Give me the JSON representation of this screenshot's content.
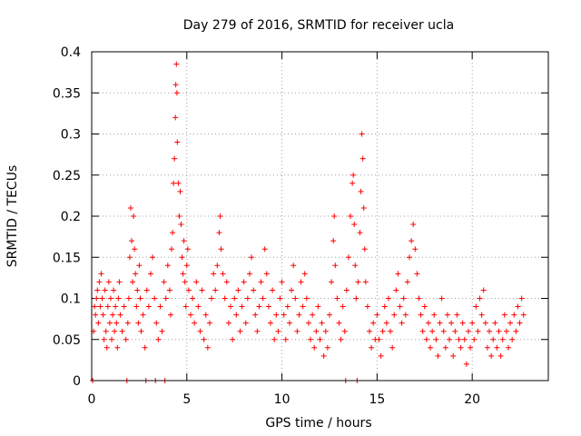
{
  "chart_data": {
    "type": "scatter",
    "title": "Day 279 of 2016, SRMTID for receiver ucla",
    "xlabel": "GPS time / hours",
    "ylabel": "SRMTID / TECUs",
    "xlim": [
      0,
      24
    ],
    "ylim": [
      0,
      0.4
    ],
    "grid": true,
    "marker": "+",
    "marker_color": "#ff0000",
    "xticks": [
      0,
      5,
      10,
      15,
      20
    ],
    "xtick_labels": [
      "0",
      "5",
      "10",
      "15",
      "20"
    ],
    "yticks": [
      0,
      0.05,
      0.1,
      0.15,
      0.2,
      0.25,
      0.3,
      0.35,
      0.4
    ],
    "ytick_labels": [
      "0",
      "0.05",
      "0.1",
      "0.15",
      "0.2",
      "0.25",
      "0.3",
      "0.35",
      "0.4"
    ],
    "series": [
      {
        "name": "SRMTID",
        "points": [
          [
            0.05,
            0.0
          ],
          [
            0.1,
            0.06
          ],
          [
            0.15,
            0.09
          ],
          [
            0.2,
            0.08
          ],
          [
            0.25,
            0.1
          ],
          [
            0.3,
            0.11
          ],
          [
            0.35,
            0.07
          ],
          [
            0.4,
            0.12
          ],
          [
            0.45,
            0.09
          ],
          [
            0.5,
            0.13
          ],
          [
            0.55,
            0.1
          ],
          [
            0.6,
            0.08
          ],
          [
            0.65,
            0.05
          ],
          [
            0.7,
            0.11
          ],
          [
            0.75,
            0.06
          ],
          [
            0.8,
            0.04
          ],
          [
            0.85,
            0.09
          ],
          [
            0.9,
            0.12
          ],
          [
            0.95,
            0.07
          ],
          [
            1.0,
            0.1
          ],
          [
            1.05,
            0.05
          ],
          [
            1.1,
            0.08
          ],
          [
            1.15,
            0.11
          ],
          [
            1.2,
            0.06
          ],
          [
            1.25,
            0.09
          ],
          [
            1.3,
            0.07
          ],
          [
            1.35,
            0.04
          ],
          [
            1.4,
            0.1
          ],
          [
            1.45,
            0.12
          ],
          [
            1.5,
            0.08
          ],
          [
            1.6,
            0.06
          ],
          [
            1.7,
            0.09
          ],
          [
            1.8,
            0.05
          ],
          [
            1.85,
            0.0
          ],
          [
            1.9,
            0.07
          ],
          [
            1.95,
            0.1
          ],
          [
            2.0,
            0.15
          ],
          [
            2.05,
            0.21
          ],
          [
            2.1,
            0.17
          ],
          [
            2.15,
            0.12
          ],
          [
            2.2,
            0.2
          ],
          [
            2.25,
            0.16
          ],
          [
            2.3,
            0.13
          ],
          [
            2.35,
            0.09
          ],
          [
            2.4,
            0.11
          ],
          [
            2.45,
            0.07
          ],
          [
            2.5,
            0.14
          ],
          [
            2.55,
            0.1
          ],
          [
            2.6,
            0.06
          ],
          [
            2.7,
            0.08
          ],
          [
            2.8,
            0.04
          ],
          [
            2.85,
            0.0
          ],
          [
            2.9,
            0.11
          ],
          [
            3.0,
            0.09
          ],
          [
            3.1,
            0.13
          ],
          [
            3.2,
            0.15
          ],
          [
            3.3,
            0.1
          ],
          [
            3.35,
            0.0
          ],
          [
            3.4,
            0.07
          ],
          [
            3.5,
            0.05
          ],
          [
            3.6,
            0.09
          ],
          [
            3.7,
            0.06
          ],
          [
            3.8,
            0.12
          ],
          [
            3.85,
            0.0
          ],
          [
            3.9,
            0.1
          ],
          [
            4.0,
            0.14
          ],
          [
            4.1,
            0.11
          ],
          [
            4.15,
            0.08
          ],
          [
            4.2,
            0.16
          ],
          [
            4.25,
            0.18
          ],
          [
            4.3,
            0.24
          ],
          [
            4.35,
            0.27
          ],
          [
            4.4,
            0.32
          ],
          [
            4.42,
            0.36
          ],
          [
            4.45,
            0.385
          ],
          [
            4.48,
            0.35
          ],
          [
            4.5,
            0.29
          ],
          [
            4.55,
            0.24
          ],
          [
            4.6,
            0.2
          ],
          [
            4.65,
            0.23
          ],
          [
            4.7,
            0.19
          ],
          [
            4.75,
            0.15
          ],
          [
            4.8,
            0.13
          ],
          [
            4.85,
            0.17
          ],
          [
            4.9,
            0.12
          ],
          [
            4.95,
            0.09
          ],
          [
            5.0,
            0.14
          ],
          [
            5.05,
            0.16
          ],
          [
            5.1,
            0.11
          ],
          [
            5.2,
            0.08
          ],
          [
            5.3,
            0.1
          ],
          [
            5.4,
            0.07
          ],
          [
            5.5,
            0.12
          ],
          [
            5.6,
            0.09
          ],
          [
            5.7,
            0.06
          ],
          [
            5.8,
            0.11
          ],
          [
            5.9,
            0.05
          ],
          [
            6.0,
            0.08
          ],
          [
            6.1,
            0.04
          ],
          [
            6.2,
            0.07
          ],
          [
            6.3,
            0.1
          ],
          [
            6.4,
            0.13
          ],
          [
            6.5,
            0.11
          ],
          [
            6.6,
            0.14
          ],
          [
            6.7,
            0.18
          ],
          [
            6.75,
            0.2
          ],
          [
            6.8,
            0.16
          ],
          [
            6.9,
            0.13
          ],
          [
            7.0,
            0.1
          ],
          [
            7.1,
            0.12
          ],
          [
            7.2,
            0.07
          ],
          [
            7.3,
            0.09
          ],
          [
            7.4,
            0.05
          ],
          [
            7.5,
            0.1
          ],
          [
            7.6,
            0.08
          ],
          [
            7.7,
            0.11
          ],
          [
            7.8,
            0.06
          ],
          [
            7.9,
            0.09
          ],
          [
            8.0,
            0.12
          ],
          [
            8.1,
            0.07
          ],
          [
            8.2,
            0.1
          ],
          [
            8.3,
            0.13
          ],
          [
            8.4,
            0.15
          ],
          [
            8.5,
            0.11
          ],
          [
            8.6,
            0.08
          ],
          [
            8.7,
            0.06
          ],
          [
            8.8,
            0.09
          ],
          [
            8.9,
            0.12
          ],
          [
            9.0,
            0.1
          ],
          [
            9.1,
            0.16
          ],
          [
            9.2,
            0.13
          ],
          [
            9.3,
            0.09
          ],
          [
            9.4,
            0.07
          ],
          [
            9.5,
            0.11
          ],
          [
            9.6,
            0.05
          ],
          [
            9.7,
            0.08
          ],
          [
            9.8,
            0.06
          ],
          [
            9.9,
            0.1
          ],
          [
            10.0,
            0.12
          ],
          [
            10.1,
            0.08
          ],
          [
            10.2,
            0.05
          ],
          [
            10.3,
            0.09
          ],
          [
            10.4,
            0.07
          ],
          [
            10.5,
            0.11
          ],
          [
            10.6,
            0.14
          ],
          [
            10.7,
            0.1
          ],
          [
            10.8,
            0.06
          ],
          [
            10.9,
            0.08
          ],
          [
            11.0,
            0.12
          ],
          [
            11.1,
            0.09
          ],
          [
            11.2,
            0.13
          ],
          [
            11.3,
            0.1
          ],
          [
            11.4,
            0.07
          ],
          [
            11.5,
            0.05
          ],
          [
            11.6,
            0.08
          ],
          [
            11.7,
            0.04
          ],
          [
            11.8,
            0.06
          ],
          [
            11.9,
            0.09
          ],
          [
            12.0,
            0.05
          ],
          [
            12.1,
            0.07
          ],
          [
            12.2,
            0.03
          ],
          [
            12.3,
            0.06
          ],
          [
            12.4,
            0.04
          ],
          [
            12.5,
            0.08
          ],
          [
            12.6,
            0.12
          ],
          [
            12.7,
            0.17
          ],
          [
            12.75,
            0.2
          ],
          [
            12.8,
            0.14
          ],
          [
            12.9,
            0.1
          ],
          [
            13.0,
            0.07
          ],
          [
            13.1,
            0.05
          ],
          [
            13.2,
            0.09
          ],
          [
            13.3,
            0.06
          ],
          [
            13.35,
            0.0
          ],
          [
            13.4,
            0.11
          ],
          [
            13.5,
            0.15
          ],
          [
            13.6,
            0.2
          ],
          [
            13.7,
            0.24
          ],
          [
            13.75,
            0.25
          ],
          [
            13.8,
            0.19
          ],
          [
            13.85,
            0.14
          ],
          [
            13.9,
            0.1
          ],
          [
            13.95,
            0.0
          ],
          [
            14.0,
            0.12
          ],
          [
            14.1,
            0.18
          ],
          [
            14.15,
            0.23
          ],
          [
            14.2,
            0.3
          ],
          [
            14.25,
            0.27
          ],
          [
            14.3,
            0.21
          ],
          [
            14.35,
            0.16
          ],
          [
            14.4,
            0.12
          ],
          [
            14.5,
            0.09
          ],
          [
            14.6,
            0.06
          ],
          [
            14.7,
            0.04
          ],
          [
            14.8,
            0.07
          ],
          [
            14.9,
            0.05
          ],
          [
            15.0,
            0.08
          ],
          [
            15.1,
            0.05
          ],
          [
            15.2,
            0.03
          ],
          [
            15.3,
            0.06
          ],
          [
            15.4,
            0.09
          ],
          [
            15.5,
            0.07
          ],
          [
            15.6,
            0.1
          ],
          [
            15.7,
            0.06
          ],
          [
            15.8,
            0.04
          ],
          [
            15.9,
            0.08
          ],
          [
            16.0,
            0.11
          ],
          [
            16.1,
            0.13
          ],
          [
            16.2,
            0.09
          ],
          [
            16.3,
            0.07
          ],
          [
            16.4,
            0.1
          ],
          [
            16.5,
            0.08
          ],
          [
            16.6,
            0.12
          ],
          [
            16.7,
            0.15
          ],
          [
            16.8,
            0.17
          ],
          [
            16.9,
            0.19
          ],
          [
            17.0,
            0.16
          ],
          [
            17.1,
            0.13
          ],
          [
            17.2,
            0.1
          ],
          [
            17.3,
            0.08
          ],
          [
            17.4,
            0.06
          ],
          [
            17.5,
            0.09
          ],
          [
            17.6,
            0.05
          ],
          [
            17.7,
            0.07
          ],
          [
            17.8,
            0.04
          ],
          [
            17.9,
            0.06
          ],
          [
            18.0,
            0.08
          ],
          [
            18.1,
            0.05
          ],
          [
            18.2,
            0.03
          ],
          [
            18.3,
            0.07
          ],
          [
            18.4,
            0.1
          ],
          [
            18.5,
            0.06
          ],
          [
            18.6,
            0.04
          ],
          [
            18.7,
            0.08
          ],
          [
            18.8,
            0.05
          ],
          [
            18.9,
            0.07
          ],
          [
            19.0,
            0.03
          ],
          [
            19.1,
            0.06
          ],
          [
            19.2,
            0.08
          ],
          [
            19.3,
            0.05
          ],
          [
            19.4,
            0.04
          ],
          [
            19.5,
            0.07
          ],
          [
            19.6,
            0.05
          ],
          [
            19.7,
            0.02
          ],
          [
            19.8,
            0.06
          ],
          [
            19.9,
            0.04
          ],
          [
            20.0,
            0.07
          ],
          [
            20.1,
            0.05
          ],
          [
            20.2,
            0.09
          ],
          [
            20.3,
            0.06
          ],
          [
            20.4,
            0.1
          ],
          [
            20.5,
            0.08
          ],
          [
            20.6,
            0.11
          ],
          [
            20.7,
            0.07
          ],
          [
            20.8,
            0.04
          ],
          [
            20.9,
            0.06
          ],
          [
            21.0,
            0.03
          ],
          [
            21.1,
            0.05
          ],
          [
            21.2,
            0.07
          ],
          [
            21.3,
            0.04
          ],
          [
            21.4,
            0.06
          ],
          [
            21.5,
            0.03
          ],
          [
            21.6,
            0.05
          ],
          [
            21.7,
            0.08
          ],
          [
            21.8,
            0.06
          ],
          [
            21.9,
            0.04
          ],
          [
            22.0,
            0.07
          ],
          [
            22.1,
            0.05
          ],
          [
            22.2,
            0.08
          ],
          [
            22.3,
            0.06
          ],
          [
            22.4,
            0.09
          ],
          [
            22.5,
            0.07
          ],
          [
            22.6,
            0.1
          ],
          [
            22.7,
            0.08
          ]
        ]
      }
    ]
  }
}
